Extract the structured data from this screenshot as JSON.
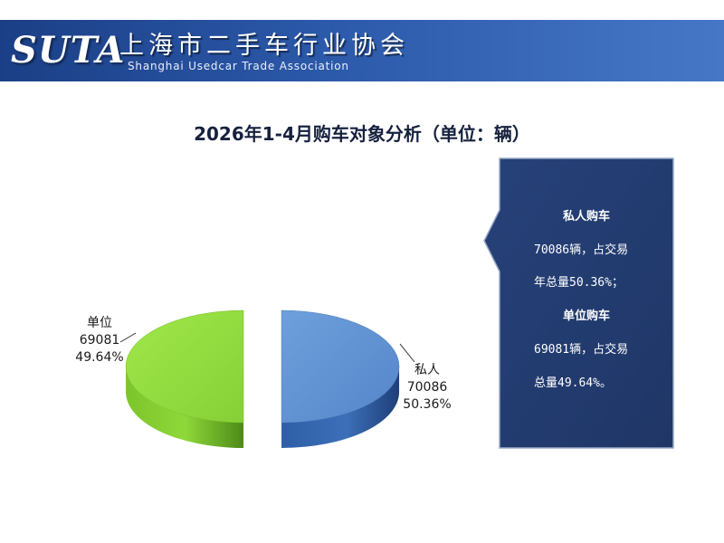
{
  "header": {
    "logo_text": "SUTA",
    "org_name_cn": "上海市二手车行业协会",
    "org_name_en": "Shanghai Usedcar Trade Association"
  },
  "chart_data": {
    "type": "pie",
    "title": "2026年1-4月购车对象分析（单位：辆）",
    "series": [
      {
        "name": "私人",
        "value": 70086,
        "percent": "50.36%",
        "color": "#5b8ed0"
      },
      {
        "name": "单位",
        "value": 69081,
        "percent": "49.64%",
        "color": "#8fd83a"
      }
    ],
    "legend": "none",
    "labels": [
      "私人",
      "单位"
    ]
  },
  "callout": {
    "lines": [
      "私人购车",
      "70086辆，占交易",
      "年总量50.36%；",
      "单位购车",
      "69081辆，占交易",
      "总量49.64%。"
    ],
    "background": "#243d6f"
  }
}
